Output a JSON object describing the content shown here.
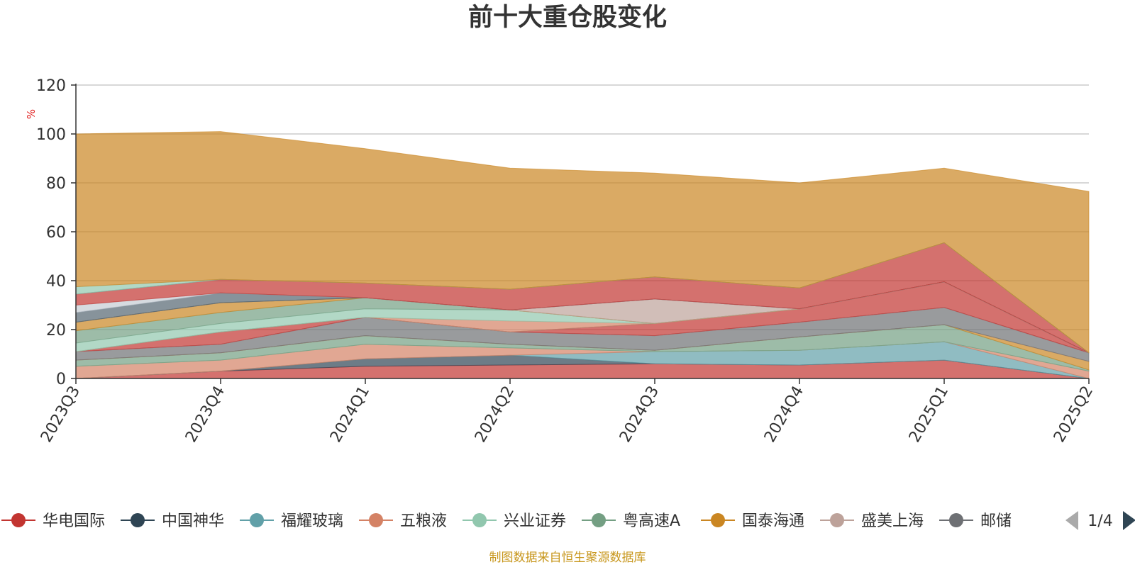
{
  "footer": "制图数据来自恒生聚源数据库",
  "legend": {
    "page_label": "1/4",
    "visible_items": [
      "华电国际",
      "中国神华",
      "福耀玻璃",
      "五粮液",
      "兴业证券",
      "粤高速A",
      "国泰海通",
      "盛美上海",
      "邮储"
    ]
  },
  "chart_data": {
    "type": "area",
    "title": "前十大重仓股变化",
    "ylabel": "%",
    "xlabel": "",
    "stacked": true,
    "ylim": [
      0,
      120
    ],
    "yticks": [
      0,
      20,
      40,
      60,
      80,
      100,
      120
    ],
    "grid": true,
    "legend_position": "bottom",
    "categories": [
      "2023Q3",
      "2023Q4",
      "2024Q1",
      "2024Q2",
      "2024Q3",
      "2024Q4",
      "2025Q1",
      "2025Q2"
    ],
    "series": [
      {
        "name": "华电国际",
        "color": "#c23531",
        "values": [
          0,
          3,
          5,
          5.5,
          6,
          5.5,
          7.5,
          0
        ]
      },
      {
        "name": "中国神华",
        "color": "#2f4554",
        "values": [
          0,
          0,
          3,
          4,
          0,
          0,
          0,
          0
        ]
      },
      {
        "name": "福耀玻璃",
        "color": "#61a0a8",
        "values": [
          0,
          0,
          0,
          0,
          5,
          6,
          7.5,
          0
        ]
      },
      {
        "name": "五粮液",
        "color": "#d48265",
        "values": [
          5,
          4.5,
          6,
          3,
          0,
          0,
          0,
          3
        ]
      },
      {
        "name": "兴业证券",
        "color": "#91c7ae",
        "values": [
          0,
          0,
          0,
          0,
          0,
          0,
          0,
          0
        ]
      },
      {
        "name": "粤高速A",
        "color": "#749f83",
        "values": [
          2.5,
          3,
          3.5,
          1.5,
          0.5,
          5.5,
          7,
          0.5
        ]
      },
      {
        "name": "国泰海通",
        "color": "#ca8622",
        "values": [
          0,
          0,
          0,
          0,
          0,
          0,
          0,
          3.5
        ]
      },
      {
        "name": "盛美上海",
        "color": "#bda29a",
        "values": [
          0,
          0,
          0,
          0,
          0,
          0,
          0,
          0
        ]
      },
      {
        "name": "邮储银行",
        "color": "#6e7074",
        "values": [
          3.5,
          3.5,
          7.5,
          5,
          6,
          6,
          7,
          3.5
        ]
      },
      {
        "name": "",
        "color": "#546570",
        "values": [
          0,
          0,
          0,
          0,
          0,
          0,
          0,
          0
        ]
      },
      {
        "name": "",
        "color": "#c4ccd3",
        "values": [
          0,
          0,
          0,
          0,
          0,
          0,
          0,
          0
        ]
      },
      {
        "name": "",
        "color": "#c23531",
        "values": [
          0,
          5,
          0,
          0,
          5,
          5.5,
          10.5,
          0
        ]
      },
      {
        "name": "",
        "color": "#61a0a8",
        "values": [
          0,
          0,
          0,
          0,
          0,
          0,
          0,
          0
        ]
      },
      {
        "name": "",
        "color": "#d48265",
        "values": [
          0,
          0,
          0,
          4.5,
          0,
          0,
          0,
          0
        ]
      },
      {
        "name": "",
        "color": "#91c7ae",
        "values": [
          3.5,
          3.5,
          3.5,
          4.5,
          0,
          0,
          0,
          0
        ]
      },
      {
        "name": "",
        "color": "#749f83",
        "values": [
          5,
          4.5,
          4.5,
          0,
          0,
          0,
          0,
          0
        ]
      },
      {
        "name": "",
        "color": "#ca8622",
        "values": [
          3.5,
          4,
          0,
          0,
          0,
          0,
          0,
          0
        ]
      },
      {
        "name": "",
        "color": "#bda29a",
        "values": [
          0,
          0,
          0,
          0,
          10,
          0,
          0,
          0
        ]
      },
      {
        "name": "",
        "color": "#6e7074",
        "values": [
          0,
          0,
          0,
          0,
          0,
          0,
          0,
          0
        ]
      },
      {
        "name": "",
        "color": "#546570",
        "values": [
          4,
          4,
          0,
          0,
          0,
          0,
          0,
          0
        ]
      },
      {
        "name": "",
        "color": "#c4ccd3",
        "values": [
          3,
          0,
          0,
          0,
          0,
          0,
          0,
          0
        ]
      },
      {
        "name": "",
        "color": "#c23531",
        "values": [
          4.5,
          5.5,
          6,
          8.5,
          9,
          8.5,
          16,
          0
        ]
      },
      {
        "name": "",
        "color": "#61a0a8",
        "values": [
          0,
          0,
          0,
          0,
          0,
          0,
          0,
          0
        ]
      },
      {
        "name": "",
        "color": "#91c7ae",
        "values": [
          3,
          0,
          0,
          0,
          0,
          0,
          0,
          0
        ]
      },
      {
        "name": "",
        "color": "#ca8622",
        "values": [
          62.5,
          60.5,
          55,
          49.5,
          42.5,
          43,
          30.5,
          66
        ]
      }
    ]
  }
}
